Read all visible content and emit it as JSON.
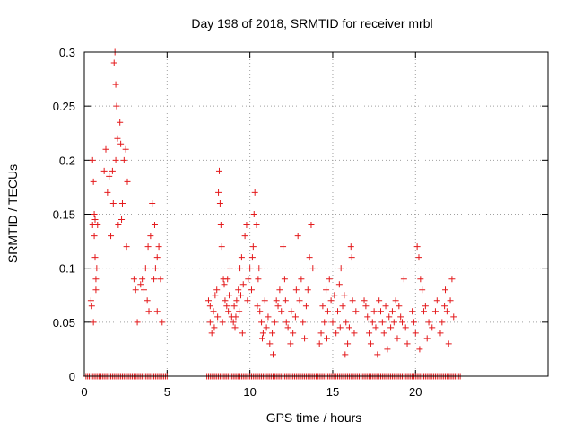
{
  "chart_data": {
    "type": "scatter",
    "title": "Day 198 of 2018, SRMTID for receiver mrbl",
    "xlabel": "GPS time / hours",
    "ylabel": "SRMTID / TECUs",
    "xlim": [
      0,
      28
    ],
    "ylim": [
      0,
      0.3
    ],
    "x_ticks": [
      0,
      5,
      10,
      15,
      20
    ],
    "x_tick_labels": [
      "0",
      "5",
      "10",
      "15",
      "20"
    ],
    "y_ticks": [
      0,
      0.05,
      0.1,
      0.15,
      0.2,
      0.25,
      0.3
    ],
    "y_tick_labels": [
      "0",
      "0.05",
      "0.1",
      "0.15",
      "0.2",
      "0.25",
      "0.3"
    ],
    "grid": true,
    "marker": "+",
    "color": "#e41a1c",
    "zero_baseline_ranges": [
      [
        0.1,
        5.0
      ],
      [
        7.4,
        22.7
      ]
    ],
    "series": [
      {
        "name": "SRMTID",
        "points": [
          [
            0.4,
            0.07
          ],
          [
            0.45,
            0.065
          ],
          [
            0.5,
            0.14
          ],
          [
            0.5,
            0.2
          ],
          [
            0.55,
            0.18
          ],
          [
            0.6,
            0.15
          ],
          [
            0.6,
            0.13
          ],
          [
            0.65,
            0.11
          ],
          [
            0.7,
            0.09
          ],
          [
            0.75,
            0.1
          ],
          [
            0.7,
            0.08
          ],
          [
            0.8,
            0.14
          ],
          [
            0.55,
            0.05
          ],
          [
            0.65,
            0.145
          ],
          [
            1.2,
            0.19
          ],
          [
            1.3,
            0.21
          ],
          [
            1.4,
            0.17
          ],
          [
            1.5,
            0.185
          ],
          [
            1.6,
            0.13
          ],
          [
            1.7,
            0.19
          ],
          [
            1.8,
            0.29
          ],
          [
            1.85,
            0.3
          ],
          [
            1.9,
            0.27
          ],
          [
            1.95,
            0.25
          ],
          [
            2.0,
            0.22
          ],
          [
            2.05,
            0.14
          ],
          [
            2.15,
            0.235
          ],
          [
            2.2,
            0.215
          ],
          [
            2.3,
            0.16
          ],
          [
            2.4,
            0.2
          ],
          [
            2.5,
            0.21
          ],
          [
            2.6,
            0.18
          ],
          [
            2.55,
            0.12
          ],
          [
            1.75,
            0.16
          ],
          [
            1.9,
            0.2
          ],
          [
            2.25,
            0.145
          ],
          [
            3.0,
            0.09
          ],
          [
            3.1,
            0.08
          ],
          [
            3.2,
            0.05
          ],
          [
            3.5,
            0.09
          ],
          [
            3.6,
            0.08
          ],
          [
            3.7,
            0.1
          ],
          [
            3.8,
            0.07
          ],
          [
            3.9,
            0.06
          ],
          [
            4.0,
            0.13
          ],
          [
            4.1,
            0.16
          ],
          [
            4.2,
            0.09
          ],
          [
            4.3,
            0.1
          ],
          [
            4.4,
            0.11
          ],
          [
            4.5,
            0.12
          ],
          [
            4.6,
            0.09
          ],
          [
            4.7,
            0.05
          ],
          [
            4.4,
            0.06
          ],
          [
            3.4,
            0.085
          ],
          [
            4.25,
            0.14
          ],
          [
            3.85,
            0.12
          ],
          [
            7.5,
            0.07
          ],
          [
            7.6,
            0.05
          ],
          [
            7.7,
            0.04
          ],
          [
            7.8,
            0.06
          ],
          [
            7.9,
            0.075
          ],
          [
            8.0,
            0.08
          ],
          [
            8.1,
            0.17
          ],
          [
            8.15,
            0.19
          ],
          [
            8.2,
            0.16
          ],
          [
            8.25,
            0.14
          ],
          [
            8.3,
            0.12
          ],
          [
            8.4,
            0.09
          ],
          [
            8.5,
            0.07
          ],
          [
            8.6,
            0.065
          ],
          [
            8.7,
            0.06
          ],
          [
            8.8,
            0.1
          ],
          [
            8.9,
            0.055
          ],
          [
            9.0,
            0.05
          ],
          [
            9.1,
            0.045
          ],
          [
            9.2,
            0.07
          ],
          [
            9.3,
            0.08
          ],
          [
            9.4,
            0.1
          ],
          [
            9.5,
            0.11
          ],
          [
            9.6,
            0.085
          ],
          [
            9.7,
            0.13
          ],
          [
            9.8,
            0.14
          ],
          [
            9.9,
            0.09
          ],
          [
            7.6,
            0.065
          ],
          [
            7.85,
            0.045
          ],
          [
            8.05,
            0.055
          ],
          [
            8.45,
            0.085
          ],
          [
            8.75,
            0.075
          ],
          [
            9.05,
            0.065
          ],
          [
            9.35,
            0.06
          ],
          [
            9.55,
            0.04
          ],
          [
            9.85,
            0.07
          ],
          [
            8.35,
            0.05
          ],
          [
            8.65,
            0.09
          ],
          [
            9.15,
            0.055
          ],
          [
            9.45,
            0.075
          ],
          [
            10.0,
            0.1
          ],
          [
            10.1,
            0.08
          ],
          [
            10.2,
            0.12
          ],
          [
            10.3,
            0.17
          ],
          [
            10.4,
            0.14
          ],
          [
            10.5,
            0.09
          ],
          [
            10.6,
            0.06
          ],
          [
            10.7,
            0.05
          ],
          [
            10.8,
            0.04
          ],
          [
            10.9,
            0.07
          ],
          [
            11.0,
            0.045
          ],
          [
            11.2,
            0.03
          ],
          [
            11.4,
            0.02
          ],
          [
            11.5,
            0.05
          ],
          [
            11.7,
            0.065
          ],
          [
            11.8,
            0.08
          ],
          [
            11.9,
            0.06
          ],
          [
            10.15,
            0.11
          ],
          [
            10.45,
            0.065
          ],
          [
            10.75,
            0.035
          ],
          [
            11.1,
            0.055
          ],
          [
            11.35,
            0.04
          ],
          [
            11.6,
            0.07
          ],
          [
            10.25,
            0.15
          ],
          [
            10.55,
            0.1
          ],
          [
            12.0,
            0.12
          ],
          [
            12.1,
            0.09
          ],
          [
            12.2,
            0.05
          ],
          [
            12.3,
            0.045
          ],
          [
            12.5,
            0.06
          ],
          [
            12.6,
            0.04
          ],
          [
            12.8,
            0.08
          ],
          [
            12.9,
            0.13
          ],
          [
            13.0,
            0.07
          ],
          [
            13.2,
            0.05
          ],
          [
            13.4,
            0.065
          ],
          [
            13.6,
            0.11
          ],
          [
            13.7,
            0.14
          ],
          [
            13.8,
            0.1
          ],
          [
            12.15,
            0.07
          ],
          [
            12.45,
            0.03
          ],
          [
            12.75,
            0.055
          ],
          [
            13.1,
            0.09
          ],
          [
            13.3,
            0.035
          ],
          [
            13.5,
            0.08
          ],
          [
            14.2,
            0.03
          ],
          [
            14.3,
            0.04
          ],
          [
            14.5,
            0.05
          ],
          [
            14.6,
            0.08
          ],
          [
            14.7,
            0.06
          ],
          [
            14.8,
            0.09
          ],
          [
            14.9,
            0.07
          ],
          [
            15.0,
            0.05
          ],
          [
            15.2,
            0.04
          ],
          [
            15.3,
            0.06
          ],
          [
            15.4,
            0.085
          ],
          [
            15.5,
            0.1
          ],
          [
            15.6,
            0.065
          ],
          [
            15.7,
            0.075
          ],
          [
            15.8,
            0.05
          ],
          [
            15.9,
            0.03
          ],
          [
            16.0,
            0.045
          ],
          [
            16.1,
            0.12
          ],
          [
            16.15,
            0.11
          ],
          [
            16.2,
            0.07
          ],
          [
            16.4,
            0.06
          ],
          [
            14.4,
            0.065
          ],
          [
            14.65,
            0.035
          ],
          [
            15.1,
            0.075
          ],
          [
            15.45,
            0.045
          ],
          [
            15.75,
            0.02
          ],
          [
            16.3,
            0.04
          ],
          [
            16.9,
            0.07
          ],
          [
            17.0,
            0.065
          ],
          [
            17.1,
            0.055
          ],
          [
            17.2,
            0.04
          ],
          [
            17.4,
            0.05
          ],
          [
            17.6,
            0.045
          ],
          [
            17.8,
            0.07
          ],
          [
            17.9,
            0.06
          ],
          [
            18.0,
            0.05
          ],
          [
            18.1,
            0.04
          ],
          [
            18.2,
            0.065
          ],
          [
            18.4,
            0.055
          ],
          [
            18.5,
            0.045
          ],
          [
            18.6,
            0.06
          ],
          [
            18.8,
            0.07
          ],
          [
            19.0,
            0.065
          ],
          [
            19.2,
            0.05
          ],
          [
            19.3,
            0.09
          ],
          [
            19.4,
            0.045
          ],
          [
            19.5,
            0.03
          ],
          [
            17.3,
            0.03
          ],
          [
            17.7,
            0.02
          ],
          [
            18.3,
            0.025
          ],
          [
            18.9,
            0.035
          ],
          [
            19.1,
            0.055
          ],
          [
            17.5,
            0.06
          ],
          [
            18.7,
            0.05
          ],
          [
            19.8,
            0.06
          ],
          [
            19.9,
            0.05
          ],
          [
            20.0,
            0.04
          ],
          [
            20.1,
            0.12
          ],
          [
            20.2,
            0.11
          ],
          [
            20.3,
            0.09
          ],
          [
            20.4,
            0.08
          ],
          [
            20.5,
            0.06
          ],
          [
            20.6,
            0.065
          ],
          [
            20.8,
            0.05
          ],
          [
            21.0,
            0.045
          ],
          [
            21.2,
            0.06
          ],
          [
            21.5,
            0.04
          ],
          [
            21.6,
            0.05
          ],
          [
            21.8,
            0.08
          ],
          [
            21.9,
            0.06
          ],
          [
            22.0,
            0.03
          ],
          [
            22.1,
            0.07
          ],
          [
            22.2,
            0.09
          ],
          [
            22.3,
            0.055
          ],
          [
            20.25,
            0.025
          ],
          [
            20.7,
            0.035
          ],
          [
            21.3,
            0.07
          ],
          [
            21.75,
            0.065
          ]
        ]
      }
    ]
  }
}
